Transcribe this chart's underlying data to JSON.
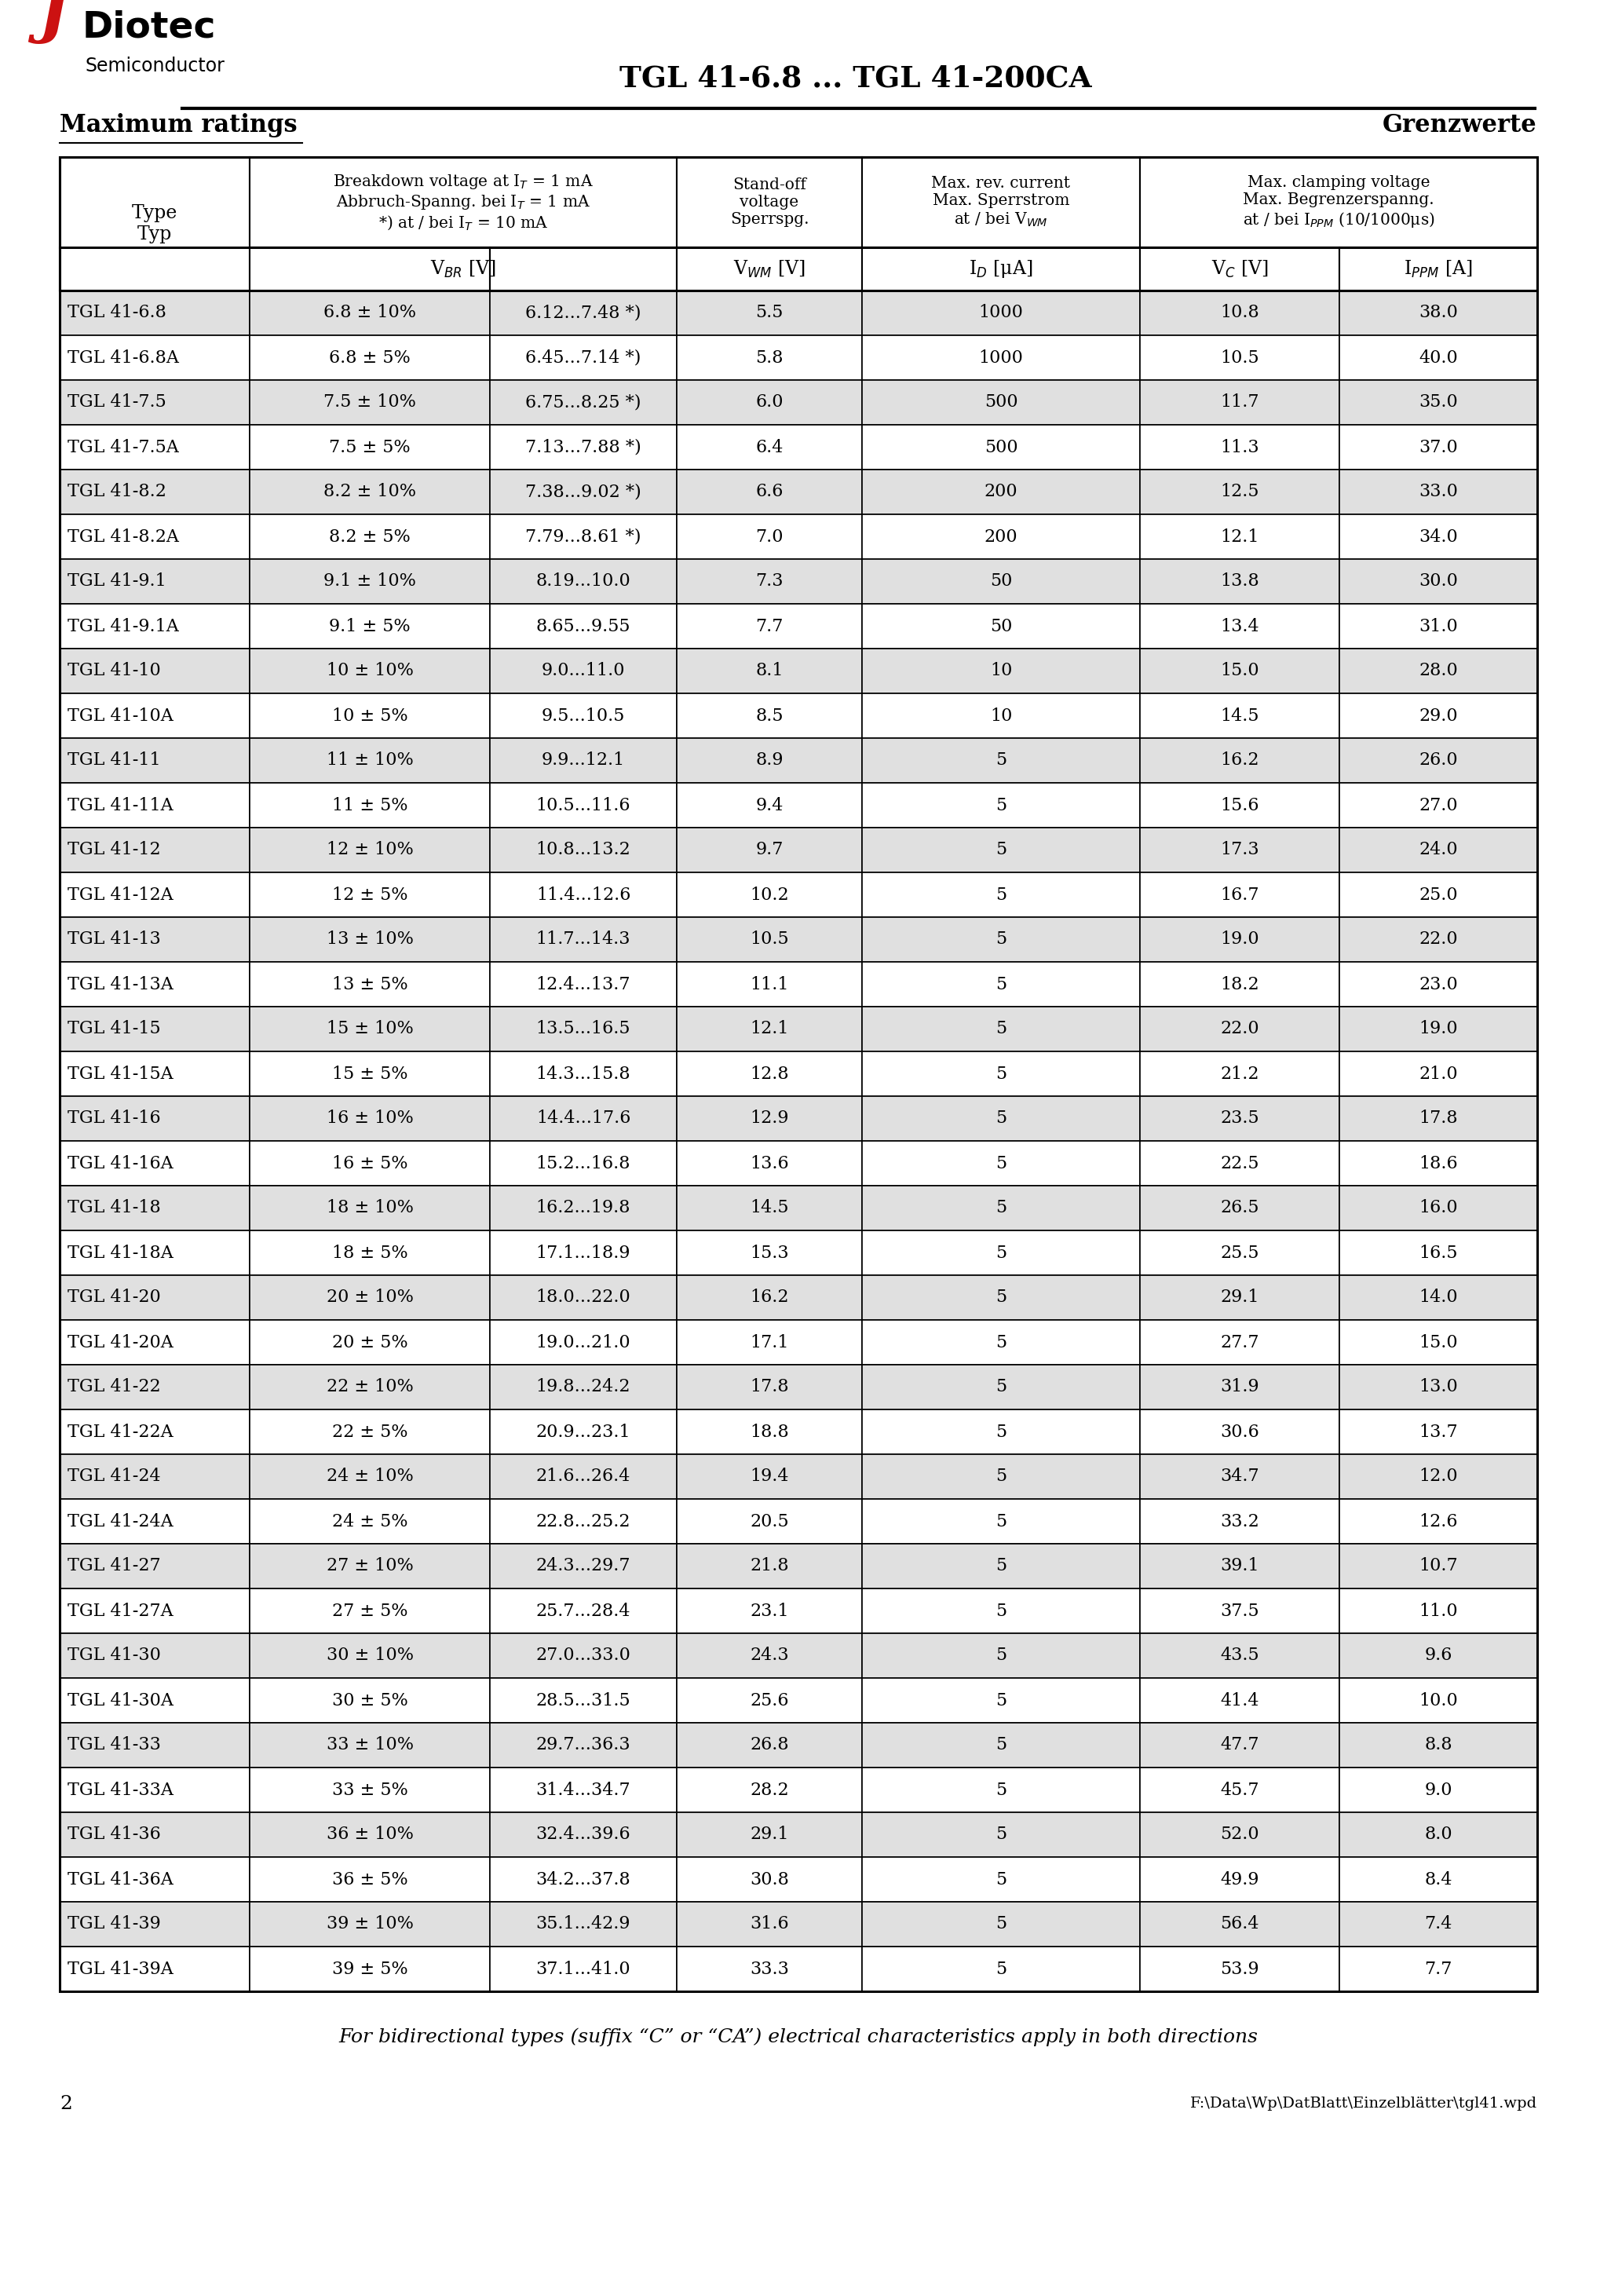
{
  "page_title": "TGL 41-6.8 ... TGL 41-200CA",
  "section_en": "Maximum ratings",
  "section_de": "Grenzwerte",
  "footer_note": "For bidirectional types (suffix “C” or “CA”) electrical characteristics apply in both directions",
  "footer_page": "2",
  "footer_file": "F:\\Data\\Wp\\DatBlatt\\Einzelblätter\\tgl41.wpd",
  "bg_odd": "#e0e0e0",
  "bg_even": "#ffffff",
  "rows": [
    [
      "TGL 41-6.8",
      "6.8 ± 10%",
      "6.12...7.48 *)",
      "5.5",
      "1000",
      "10.8",
      "38.0"
    ],
    [
      "TGL 41-6.8A",
      "6.8 ± 5%",
      "6.45...7.14 *)",
      "5.8",
      "1000",
      "10.5",
      "40.0"
    ],
    [
      "TGL 41-7.5",
      "7.5 ± 10%",
      "6.75...8.25 *)",
      "6.0",
      "500",
      "11.7",
      "35.0"
    ],
    [
      "TGL 41-7.5A",
      "7.5 ± 5%",
      "7.13...7.88 *)",
      "6.4",
      "500",
      "11.3",
      "37.0"
    ],
    [
      "TGL 41-8.2",
      "8.2 ± 10%",
      "7.38...9.02 *)",
      "6.6",
      "200",
      "12.5",
      "33.0"
    ],
    [
      "TGL 41-8.2A",
      "8.2 ± 5%",
      "7.79...8.61 *)",
      "7.0",
      "200",
      "12.1",
      "34.0"
    ],
    [
      "TGL 41-9.1",
      "9.1 ± 10%",
      "8.19...10.0",
      "7.3",
      "50",
      "13.8",
      "30.0"
    ],
    [
      "TGL 41-9.1A",
      "9.1 ± 5%",
      "8.65...9.55",
      "7.7",
      "50",
      "13.4",
      "31.0"
    ],
    [
      "TGL 41-10",
      "10 ± 10%",
      "9.0...11.0",
      "8.1",
      "10",
      "15.0",
      "28.0"
    ],
    [
      "TGL 41-10A",
      "10 ± 5%",
      "9.5...10.5",
      "8.5",
      "10",
      "14.5",
      "29.0"
    ],
    [
      "TGL 41-11",
      "11 ± 10%",
      "9.9...12.1",
      "8.9",
      "5",
      "16.2",
      "26.0"
    ],
    [
      "TGL 41-11A",
      "11 ± 5%",
      "10.5...11.6",
      "9.4",
      "5",
      "15.6",
      "27.0"
    ],
    [
      "TGL 41-12",
      "12 ± 10%",
      "10.8...13.2",
      "9.7",
      "5",
      "17.3",
      "24.0"
    ],
    [
      "TGL 41-12A",
      "12 ± 5%",
      "11.4...12.6",
      "10.2",
      "5",
      "16.7",
      "25.0"
    ],
    [
      "TGL 41-13",
      "13 ± 10%",
      "11.7...14.3",
      "10.5",
      "5",
      "19.0",
      "22.0"
    ],
    [
      "TGL 41-13A",
      "13 ± 5%",
      "12.4...13.7",
      "11.1",
      "5",
      "18.2",
      "23.0"
    ],
    [
      "TGL 41-15",
      "15 ± 10%",
      "13.5...16.5",
      "12.1",
      "5",
      "22.0",
      "19.0"
    ],
    [
      "TGL 41-15A",
      "15 ± 5%",
      "14.3...15.8",
      "12.8",
      "5",
      "21.2",
      "21.0"
    ],
    [
      "TGL 41-16",
      "16 ± 10%",
      "14.4...17.6",
      "12.9",
      "5",
      "23.5",
      "17.8"
    ],
    [
      "TGL 41-16A",
      "16 ± 5%",
      "15.2...16.8",
      "13.6",
      "5",
      "22.5",
      "18.6"
    ],
    [
      "TGL 41-18",
      "18 ± 10%",
      "16.2...19.8",
      "14.5",
      "5",
      "26.5",
      "16.0"
    ],
    [
      "TGL 41-18A",
      "18 ± 5%",
      "17.1...18.9",
      "15.3",
      "5",
      "25.5",
      "16.5"
    ],
    [
      "TGL 41-20",
      "20 ± 10%",
      "18.0...22.0",
      "16.2",
      "5",
      "29.1",
      "14.0"
    ],
    [
      "TGL 41-20A",
      "20 ± 5%",
      "19.0...21.0",
      "17.1",
      "5",
      "27.7",
      "15.0"
    ],
    [
      "TGL 41-22",
      "22 ± 10%",
      "19.8...24.2",
      "17.8",
      "5",
      "31.9",
      "13.0"
    ],
    [
      "TGL 41-22A",
      "22 ± 5%",
      "20.9...23.1",
      "18.8",
      "5",
      "30.6",
      "13.7"
    ],
    [
      "TGL 41-24",
      "24 ± 10%",
      "21.6...26.4",
      "19.4",
      "5",
      "34.7",
      "12.0"
    ],
    [
      "TGL 41-24A",
      "24 ± 5%",
      "22.8...25.2",
      "20.5",
      "5",
      "33.2",
      "12.6"
    ],
    [
      "TGL 41-27",
      "27 ± 10%",
      "24.3...29.7",
      "21.8",
      "5",
      "39.1",
      "10.7"
    ],
    [
      "TGL 41-27A",
      "27 ± 5%",
      "25.7...28.4",
      "23.1",
      "5",
      "37.5",
      "11.0"
    ],
    [
      "TGL 41-30",
      "30 ± 10%",
      "27.0...33.0",
      "24.3",
      "5",
      "43.5",
      "9.6"
    ],
    [
      "TGL 41-30A",
      "30 ± 5%",
      "28.5...31.5",
      "25.6",
      "5",
      "41.4",
      "10.0"
    ],
    [
      "TGL 41-33",
      "33 ± 10%",
      "29.7...36.3",
      "26.8",
      "5",
      "47.7",
      "8.8"
    ],
    [
      "TGL 41-33A",
      "33 ± 5%",
      "31.4...34.7",
      "28.2",
      "5",
      "45.7",
      "9.0"
    ],
    [
      "TGL 41-36",
      "36 ± 10%",
      "32.4...39.6",
      "29.1",
      "5",
      "52.0",
      "8.0"
    ],
    [
      "TGL 41-36A",
      "36 ± 5%",
      "34.2...37.8",
      "30.8",
      "5",
      "49.9",
      "8.4"
    ],
    [
      "TGL 41-39",
      "39 ± 10%",
      "35.1...42.9",
      "31.6",
      "5",
      "56.4",
      "7.4"
    ],
    [
      "TGL 41-39A",
      "39 ± 5%",
      "37.1...41.0",
      "33.3",
      "5",
      "53.9",
      "7.7"
    ]
  ]
}
